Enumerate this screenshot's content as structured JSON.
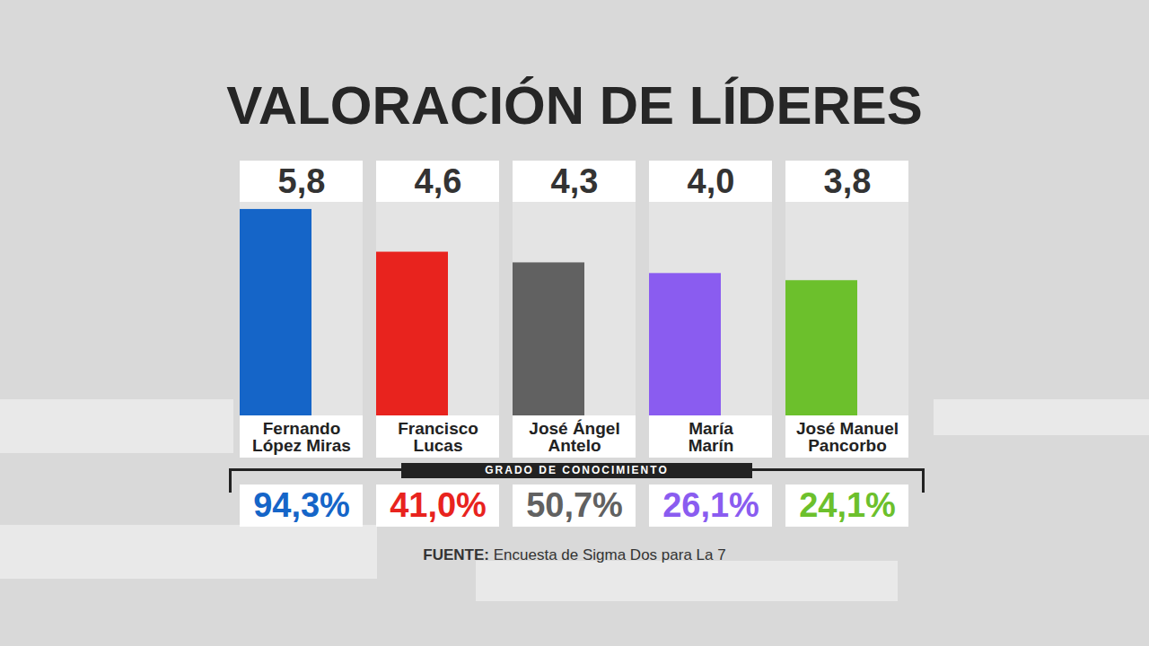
{
  "chart_data": {
    "type": "bar",
    "title": "VALORACIÓN DE LÍDERES",
    "categories": [
      "Fernando López Miras",
      "Francisco Lucas",
      "José Ángel Antelo",
      "María Marín",
      "José Manuel Pancorbo"
    ],
    "values": [
      5.8,
      4.6,
      4.3,
      4.0,
      3.8
    ],
    "value_labels": [
      "5,8",
      "4,6",
      "4,3",
      "4,0",
      "3,8"
    ],
    "colors": [
      "#1565c8",
      "#e8231e",
      "#616161",
      "#8a5cf0",
      "#6cc02c"
    ],
    "data_labels": true,
    "tick_labels": false,
    "ylim": [
      0,
      6
    ],
    "knowledge": {
      "title": "GRADO DE CONOCIMIENTO",
      "values": [
        94.3,
        41.0,
        50.7,
        26.1,
        24.1
      ],
      "value_labels": [
        "94,3%",
        "41,0%",
        "50,7%",
        "26,1%",
        "24,1%"
      ]
    },
    "source": "FUENTE: Encuesta de Sigma Dos para La 7"
  }
}
